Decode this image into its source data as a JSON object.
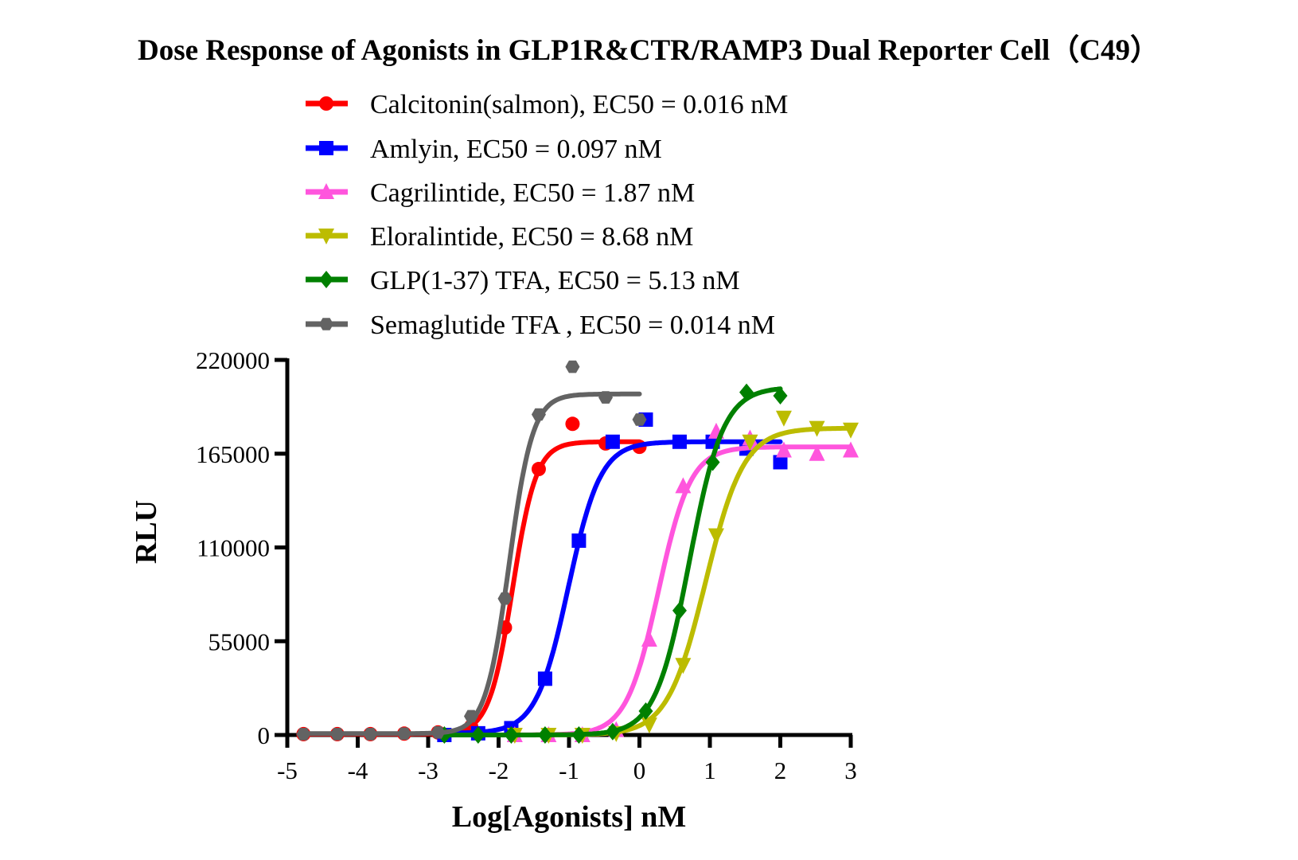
{
  "chart_data": {
    "type": "scatter",
    "title": "Dose Response of Agonists in GLP1R&CTR/RAMP3 Dual Reporter Cell（C49）",
    "xlabel": "Log[Agonists] nM",
    "ylabel": "RLU",
    "xlim": [
      -5,
      3
    ],
    "ylim": [
      0,
      220000
    ],
    "xticks": [
      -5,
      -4,
      -3,
      -2,
      -1,
      0,
      1,
      2,
      3
    ],
    "xtick_labels": [
      "-5",
      "-4",
      "-3",
      "-2",
      "-1",
      "0",
      "1",
      "2",
      "3"
    ],
    "yticks": [
      0,
      55000,
      110000,
      165000,
      220000
    ],
    "ytick_labels": [
      "0",
      "55000",
      "110000",
      "165000",
      "220000"
    ],
    "grid": false,
    "legend_position": "top",
    "series": [
      {
        "name": "Calcitonin(salmon), EC50 = 0.016 nM",
        "color": "#ff0000",
        "marker": "circle",
        "x": [
          -4.77,
          -4.29,
          -3.82,
          -3.34,
          -2.86,
          -2.39,
          -1.91,
          -1.43,
          -0.95,
          -0.48,
          0.0
        ],
        "y": [
          500,
          500,
          500,
          800,
          1500,
          5000,
          63000,
          156000,
          182500,
          171000,
          169000
        ],
        "fit": {
          "bottom": 500,
          "top": 172000,
          "log_ec50": -1.8,
          "hill": 2.6
        }
      },
      {
        "name": "Amlyin, EC50 = 0.097 nM",
        "color": "#0000ff",
        "marker": "square",
        "x": [
          -2.77,
          -2.29,
          -1.82,
          -1.34,
          -0.86,
          -0.38,
          0.09,
          0.57,
          1.04,
          1.52,
          2.0
        ],
        "y": [
          0,
          1000,
          4000,
          33000,
          114000,
          172000,
          185000,
          172000,
          172000,
          168000,
          160000
        ],
        "fit": {
          "bottom": 1000,
          "top": 172000,
          "log_ec50": -1.01,
          "hill": 1.9
        }
      },
      {
        "name": "Cagrilintide, EC50 = 1.87 nM",
        "color": "#ff55dd",
        "marker": "triangle-up",
        "x": [
          -1.77,
          -1.29,
          -0.81,
          -0.33,
          0.14,
          0.62,
          1.09,
          1.57,
          2.05,
          2.52,
          3.0
        ],
        "y": [
          0,
          0,
          0,
          3000,
          56000,
          146000,
          178000,
          174000,
          167000,
          165000,
          167000
        ],
        "fit": {
          "bottom": 0,
          "top": 169000,
          "log_ec50": 0.27,
          "hill": 1.9
        }
      },
      {
        "name": "Eloralintide, EC50 = 8.68 nM",
        "color": "#bcbc00",
        "marker": "triangle-down",
        "x": [
          -1.77,
          -1.29,
          -0.81,
          -0.33,
          0.14,
          0.62,
          1.09,
          1.57,
          2.05,
          2.52,
          3.0
        ],
        "y": [
          0,
          0,
          0,
          1000,
          6000,
          41000,
          117000,
          172000,
          186000,
          180000,
          179000
        ],
        "fit": {
          "bottom": 0,
          "top": 180000,
          "log_ec50": 0.94,
          "hill": 1.6
        }
      },
      {
        "name": "GLP(1-37) TFA, EC50 = 5.13 nM",
        "color": "#008000",
        "marker": "diamond",
        "x": [
          -2.77,
          -2.29,
          -1.82,
          -1.34,
          -0.86,
          -0.38,
          0.09,
          0.57,
          1.04,
          1.52,
          2.0
        ],
        "y": [
          0,
          0,
          0,
          0,
          0,
          2000,
          14000,
          73000,
          160000,
          201000,
          199000
        ],
        "fit": {
          "bottom": 0,
          "top": 204000,
          "log_ec50": 0.71,
          "hill": 1.8
        }
      },
      {
        "name": "Semaglutide TFA , EC50 = 0.014 nM",
        "color": "#636363",
        "marker": "hexagon",
        "x": [
          -4.77,
          -4.29,
          -3.82,
          -3.34,
          -2.86,
          -2.39,
          -1.91,
          -1.43,
          -0.95,
          -0.48,
          0.0
        ],
        "y": [
          500,
          500,
          500,
          800,
          1500,
          11000,
          80000,
          188000,
          216000,
          198000,
          185000
        ],
        "fit": {
          "bottom": 800,
          "top": 200000,
          "log_ec50": -1.85,
          "hill": 2.6
        }
      }
    ]
  }
}
